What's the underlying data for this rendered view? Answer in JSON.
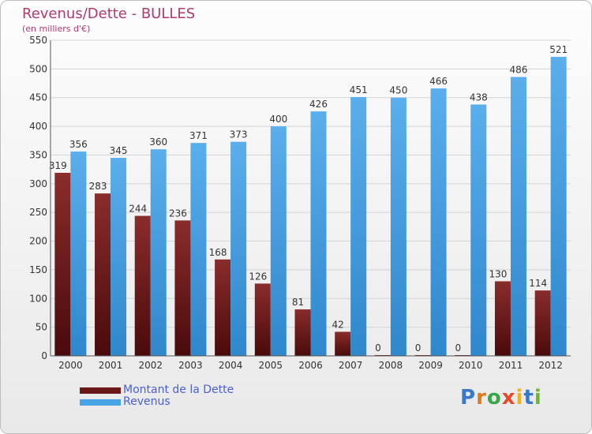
{
  "chart_data": {
    "type": "bar",
    "title": "Revenus/Dette - BULLES",
    "subtitle": "(en milliers d'€)",
    "categories": [
      "2000",
      "2001",
      "2002",
      "2003",
      "2004",
      "2005",
      "2006",
      "2007",
      "2008",
      "2009",
      "2010",
      "2011",
      "2012"
    ],
    "series": [
      {
        "name": "Montant de la Dette",
        "color": "#6b1818",
        "values": [
          319,
          283,
          244,
          236,
          168,
          126,
          81,
          42,
          0,
          0,
          0,
          130,
          114
        ]
      },
      {
        "name": "Revenus",
        "color": "#4aa3e6",
        "values": [
          356,
          345,
          360,
          371,
          373,
          400,
          426,
          451,
          450,
          466,
          438,
          486,
          521
        ]
      }
    ],
    "ylim": [
      0,
      550
    ],
    "yticks": [
      0,
      50,
      100,
      150,
      200,
      250,
      300,
      350,
      400,
      450,
      500,
      550
    ],
    "grid": true,
    "legend": "bottom-left"
  },
  "legend_items": [
    {
      "label": "Montant de la Dette",
      "color": "#6b1818"
    },
    {
      "label": "Revenus",
      "color": "#4aa3e6"
    }
  ],
  "logo": {
    "letters": [
      "P",
      "r",
      "o",
      "x",
      "i",
      "t",
      "i"
    ],
    "colors": [
      "#3a78c9",
      "#e07a1f",
      "#3aa64a",
      "#e64a2b",
      "#f2b21b",
      "#3a78c9",
      "#6cb82c"
    ]
  }
}
